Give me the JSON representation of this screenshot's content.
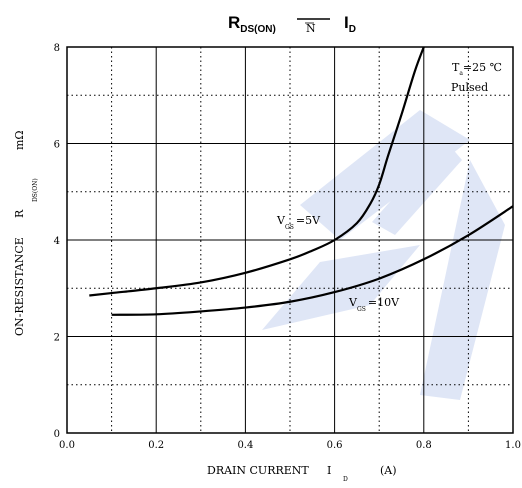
{
  "colors": {
    "watermark": "#dfe6f6",
    "axis": "#000000",
    "grid_solid": "#000000",
    "grid_dotted": "#000000",
    "series": "#000000"
  },
  "title": {
    "main": "R",
    "main_sub": "DS(ON)",
    "middle": "N",
    "right": "I",
    "right_sub": "D"
  },
  "legend": {
    "line1_main": "T",
    "line1_sub": "a",
    "line1_rest": "=25 ℃",
    "line2": "Pulsed"
  },
  "chart_data": {
    "type": "line",
    "title": "RDS(ON) N ID",
    "xlabel": "DRAIN CURRENT I D (A)",
    "ylabel": "ON-RESISTANCE R DS(ON) mΩ",
    "xlim": [
      0.0,
      1.0
    ],
    "ylim": [
      0,
      8
    ],
    "x_tick_labels": [
      "0.0",
      "0.2",
      "0.4",
      "0.6",
      "0.8",
      "1.0"
    ],
    "y_tick_labels": [
      "0",
      "2",
      "4",
      "6",
      "8"
    ],
    "x_label_parts": {
      "text": "DRAIN CURRENT",
      "symbol": "I",
      "sub": "D",
      "unit": "(A)"
    },
    "y_label_parts": {
      "text": "ON-RESISTANCE",
      "symbol": "R",
      "sub": "DS(ON)",
      "unit": "mΩ"
    },
    "grid": true,
    "legend_position": "top-right",
    "series": [
      {
        "name": "V GS =5V",
        "label_main": "V",
        "label_sub": "GS",
        "label_rest": "=5V",
        "x": [
          0.05,
          0.1,
          0.2,
          0.3,
          0.4,
          0.5,
          0.55,
          0.6,
          0.65,
          0.68,
          0.7,
          0.72,
          0.75,
          0.78,
          0.8
        ],
        "y": [
          2.85,
          2.9,
          3.0,
          3.12,
          3.32,
          3.6,
          3.78,
          4.0,
          4.35,
          4.75,
          5.15,
          5.75,
          6.6,
          7.5,
          8.0
        ]
      },
      {
        "name": "V GS =10V",
        "label_main": "V",
        "label_sub": "GS",
        "label_rest": "=10V",
        "x": [
          0.1,
          0.2,
          0.3,
          0.4,
          0.5,
          0.6,
          0.7,
          0.8,
          0.9,
          1.0
        ],
        "y": [
          2.45,
          2.46,
          2.52,
          2.6,
          2.72,
          2.92,
          3.2,
          3.6,
          4.1,
          4.7
        ]
      }
    ]
  }
}
